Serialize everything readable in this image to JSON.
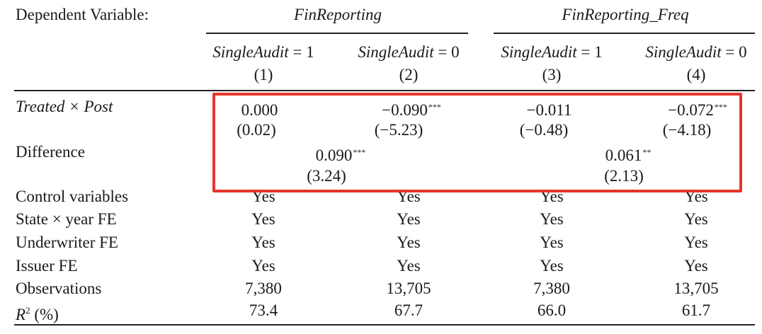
{
  "header": {
    "dep_var_label": "Dependent Variable:",
    "group1": "FinReporting",
    "group2": "FinReporting_Freq",
    "columns": [
      {
        "name": "SingleAudit",
        "op": "=",
        "val": "1",
        "num": "(1)"
      },
      {
        "name": "SingleAudit",
        "op": "=",
        "val": "0",
        "num": "(2)"
      },
      {
        "name": "SingleAudit",
        "op": "=",
        "val": "1",
        "num": "(3)"
      },
      {
        "name": "SingleAudit",
        "op": "=",
        "val": "0",
        "num": "(4)"
      }
    ]
  },
  "rows": {
    "treated": {
      "label": "Treated × Post",
      "coef": [
        "0.000",
        "−0.090",
        "−0.011",
        "−0.072"
      ],
      "stars": [
        "",
        "***",
        "",
        "***"
      ],
      "t": [
        "(0.02)",
        "(−5.23)",
        "(−0.48)",
        "(−4.18)"
      ]
    },
    "difference": {
      "label": "Difference",
      "values": [
        "0.090",
        "0.061"
      ],
      "stars": [
        "***",
        "**"
      ],
      "t": [
        "(3.24)",
        "(2.13)"
      ]
    },
    "yes_rows": [
      {
        "label": "Control variables",
        "values": [
          "Yes",
          "Yes",
          "Yes",
          "Yes"
        ]
      },
      {
        "label": "State × year FE",
        "values": [
          "Yes",
          "Yes",
          "Yes",
          "Yes"
        ]
      },
      {
        "label": "Underwriter FE",
        "values": [
          "Yes",
          "Yes",
          "Yes",
          "Yes"
        ]
      },
      {
        "label": "Issuer FE",
        "values": [
          "Yes",
          "Yes",
          "Yes",
          "Yes"
        ]
      }
    ],
    "observations": {
      "label": "Observations",
      "values": [
        "7,380",
        "13,705",
        "7,380",
        "13,705"
      ]
    },
    "r2": {
      "label_main": "R",
      "label_sup": "2",
      "label_rest": " (%)",
      "values": [
        "73.4",
        "67.7",
        "66.0",
        "61.7"
      ]
    }
  },
  "highlight_color": "#e8352b"
}
